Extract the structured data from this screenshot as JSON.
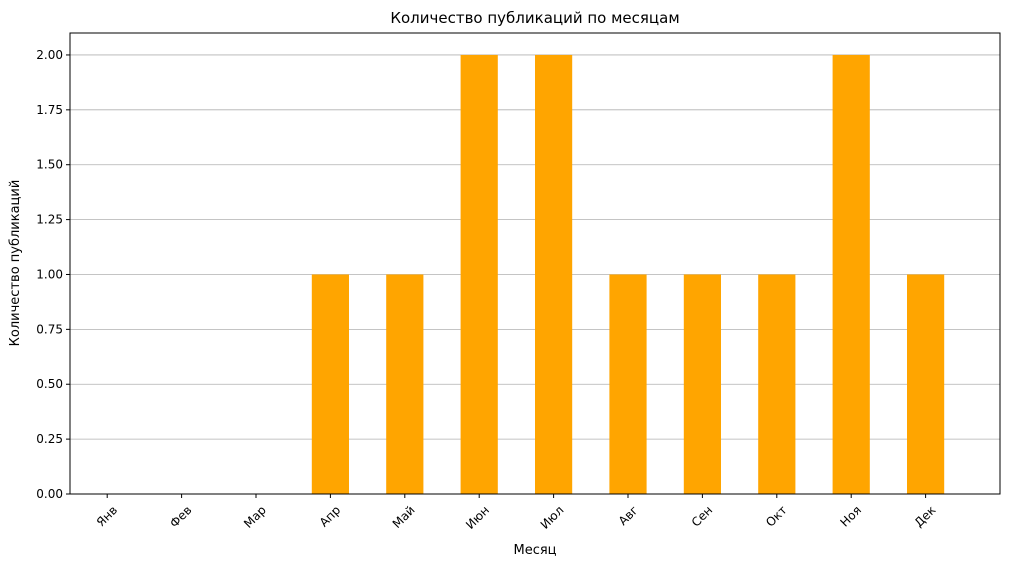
{
  "chart_data": {
    "type": "bar",
    "title": "Количество публикаций по месяцам",
    "xlabel": "Месяц",
    "ylabel": "Количество публикаций",
    "categories": [
      "Янв",
      "Фев",
      "Мар",
      "Апр",
      "Май",
      "Июн",
      "Июл",
      "Авг",
      "Сен",
      "Окт",
      "Ноя",
      "Дек"
    ],
    "values": [
      0,
      0,
      0,
      1,
      1,
      2,
      2,
      1,
      1,
      1,
      2,
      1
    ],
    "ylim": [
      0,
      2.1
    ],
    "yticks": [
      "0.00",
      "0.25",
      "0.50",
      "0.75",
      "1.00",
      "1.25",
      "1.50",
      "1.75",
      "2.00"
    ],
    "grid": "horizontal",
    "bar_color": "#ffa500"
  }
}
